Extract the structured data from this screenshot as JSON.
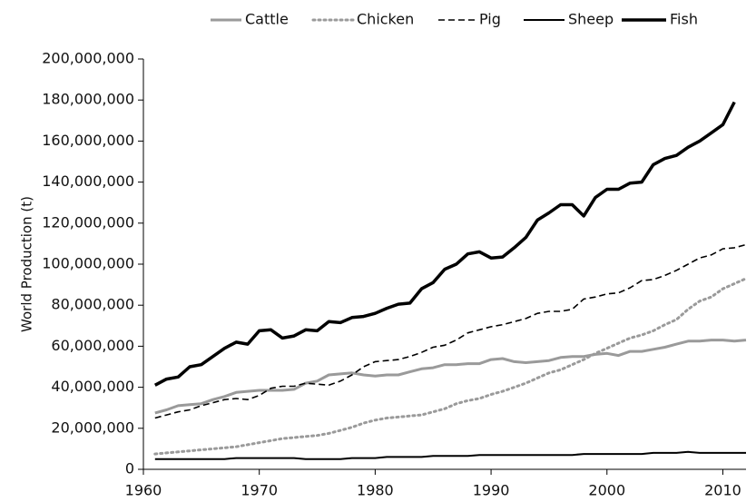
{
  "chart_data": {
    "type": "line",
    "y_label": "World Production (t)",
    "legend": "top",
    "x": [
      1961,
      1962,
      1963,
      1964,
      1965,
      1966,
      1967,
      1968,
      1969,
      1970,
      1971,
      1972,
      1973,
      1974,
      1975,
      1976,
      1977,
      1978,
      1979,
      1980,
      1981,
      1982,
      1983,
      1984,
      1985,
      1986,
      1987,
      1988,
      1989,
      1990,
      1991,
      1992,
      1993,
      1994,
      1995,
      1996,
      1997,
      1998,
      1999,
      2000,
      2001,
      2002,
      2003,
      2004,
      2005,
      2006,
      2007,
      2008,
      2009,
      2010,
      2011,
      2012
    ],
    "xlim": [
      1960,
      2012
    ],
    "xticks": [
      1960,
      1970,
      1980,
      1990,
      2000,
      2010
    ],
    "ylim": [
      0,
      200000000
    ],
    "yticks": [
      0,
      {
        "value": 20000000,
        "label": "20,000,000"
      },
      {
        "value": 40000000,
        "label": "40,000,000"
      },
      {
        "value": 60000000,
        "label": "60,000,000"
      },
      {
        "value": 80000000,
        "label": "80,000,000"
      },
      {
        "value": 100000000,
        "label": "100,000,000"
      },
      {
        "value": 120000000,
        "label": "120,000,000"
      },
      {
        "value": 140000000,
        "label": "140,000,000"
      },
      {
        "value": 160000000,
        "label": "160,000,000"
      },
      {
        "value": 180000000,
        "label": "180,000,000"
      },
      {
        "value": 200000000,
        "label": "200,000,000"
      }
    ],
    "series": [
      {
        "name": "Cattle",
        "color": "#9a9a9a",
        "dash": "solid",
        "width": 3,
        "values": [
          27500000.0,
          29000000.0,
          31000000.0,
          31500000.0,
          32000000.0,
          34000000.0,
          35500000.0,
          37500000.0,
          38000000.0,
          38500000.0,
          38500000.0,
          38500000.0,
          39000000.0,
          42000000.0,
          43000000.0,
          46000000.0,
          46500000.0,
          47000000.0,
          46000000.0,
          45500000.0,
          46000000.0,
          46000000.0,
          47500000.0,
          49000000.0,
          49500000.0,
          51000000.0,
          51000000.0,
          51500000.0,
          51500000.0,
          53500000.0,
          54000000.0,
          52500000.0,
          52000000.0,
          52500000.0,
          53000000.0,
          54500000.0,
          55000000.0,
          55000000.0,
          56000000.0,
          56500000.0,
          55500000.0,
          57500000.0,
          57500000.0,
          58500000.0,
          59500000.0,
          61000000.0,
          62500000.0,
          62500000.0,
          63000000.0,
          63000000.0,
          62500000.0,
          63000000.0
        ]
      },
      {
        "name": "Chicken",
        "color": "#9a9a9a",
        "dash": "dotted",
        "width": 3,
        "values": [
          7500000.0,
          8000000.0,
          8500000.0,
          9000000.0,
          9500000.0,
          10000000.0,
          10500000.0,
          11000000.0,
          12000000.0,
          13000000.0,
          14000000.0,
          15000000.0,
          15500000.0,
          16000000.0,
          16500000.0,
          17500000.0,
          19000000.0,
          20500000.0,
          22500000.0,
          24000000.0,
          25000000.0,
          25500000.0,
          26000000.0,
          26500000.0,
          28000000.0,
          29500000.0,
          32000000.0,
          33500000.0,
          34500000.0,
          36500000.0,
          38000000.0,
          40000000.0,
          42000000.0,
          44500000.0,
          47000000.0,
          48500000.0,
          51000000.0,
          53500000.0,
          56500000.0,
          59000000.0,
          61500000.0,
          64000000.0,
          65500000.0,
          67500000.0,
          70500000.0,
          73000000.0,
          78000000.0,
          82000000.0,
          84000000.0,
          88000000.0,
          90500000.0,
          93000000.0
        ]
      },
      {
        "name": "Pig",
        "color": "#000000",
        "dash": "dashed",
        "width": 1.6,
        "values": [
          25000000.0,
          26500000.0,
          28000000.0,
          29000000.0,
          31000000.0,
          32500000.0,
          34000000.0,
          34500000.0,
          34000000.0,
          36000000.0,
          39500000.0,
          40500000.0,
          40500000.0,
          42000000.0,
          41500000.0,
          41000000.0,
          43000000.0,
          46000000.0,
          50000000.0,
          52500000.0,
          53000000.0,
          53500000.0,
          55000000.0,
          57000000.0,
          59500000.0,
          60500000.0,
          63000000.0,
          66500000.0,
          68000000.0,
          69500000.0,
          70500000.0,
          72000000.0,
          73500000.0,
          76000000.0,
          77000000.0,
          77000000.0,
          78000000.0,
          83000000.0,
          84000000.0,
          85500000.0,
          86000000.0,
          88500000.0,
          92000000.0,
          92500000.0,
          94500000.0,
          97000000.0,
          100000000.0,
          103000000.0,
          104500000.0,
          107500000.0,
          108000000.0,
          109500000.0
        ]
      },
      {
        "name": "Sheep",
        "color": "#000000",
        "dash": "solid",
        "width": 2,
        "values": [
          5000000.0,
          5000000.0,
          5000000.0,
          5000000.0,
          5000000.0,
          5000000.0,
          5000000.0,
          5500000.0,
          5500000.0,
          5500000.0,
          5500000.0,
          5500000.0,
          5500000.0,
          5000000.0,
          5000000.0,
          5000000.0,
          5000000.0,
          5500000.0,
          5500000.0,
          5500000.0,
          6000000.0,
          6000000.0,
          6000000.0,
          6000000.0,
          6500000.0,
          6500000.0,
          6500000.0,
          6500000.0,
          7000000.0,
          7000000.0,
          7000000.0,
          7000000.0,
          7000000.0,
          7000000.0,
          7000000.0,
          7000000.0,
          7000000.0,
          7500000.0,
          7500000.0,
          7500000.0,
          7500000.0,
          7500000.0,
          7500000.0,
          8000000.0,
          8000000.0,
          8000000.0,
          8500000.0,
          8000000.0,
          8000000.0,
          8000000.0,
          8000000.0,
          8000000.0
        ]
      },
      {
        "name": "Fish",
        "color": "#000000",
        "dash": "solid",
        "width": 3.5,
        "values": [
          41000000.0,
          44000000.0,
          45000000.0,
          50000000.0,
          51000000.0,
          55000000.0,
          59000000.0,
          62000000.0,
          61000000.0,
          67500000.0,
          68000000.0,
          64000000.0,
          65000000.0,
          68000000.0,
          67500000.0,
          72000000.0,
          71500000.0,
          74000000.0,
          74500000.0,
          76000000.0,
          78500000.0,
          80500000.0,
          81000000.0,
          88000000.0,
          91000000.0,
          97500000.0,
          100000000.0,
          105000000.0,
          106000000.0,
          103000000.0,
          103500000.0,
          108000000.0,
          113000000.0,
          121500000.0,
          125000000.0,
          129000000.0,
          129000000.0,
          123500000.0,
          132500000.0,
          136500000.0,
          136500000.0,
          139500000.0,
          140000000.0,
          148500000.0,
          151500000.0,
          153000000.0,
          157000000.0,
          160000000.0,
          164000000.0,
          168000000.0,
          179000000.0,
          null
        ]
      }
    ]
  }
}
